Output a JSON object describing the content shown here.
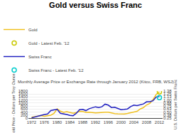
{
  "chart_data": {
    "type": "line",
    "title": "Gold versus Swiss Franc",
    "subtitle": "Monthly Average Price or Exchange Rate through January 2012 (Kitco, FRB, WSJ)",
    "ylabel": "Gold Price - Dollars per Troy Ounce",
    "y2label": "U.S. Dollars per Swiss Franc",
    "x": [
      1972,
      1973,
      1974,
      1975,
      1976,
      1977,
      1978,
      1979,
      1980,
      1981,
      1982,
      1983,
      1984,
      1985,
      1986,
      1987,
      1988,
      1989,
      1990,
      1991,
      1992,
      1993,
      1994,
      1995,
      1996,
      1997,
      1998,
      1999,
      2000,
      2001,
      2002,
      2003,
      2004,
      2005,
      2006,
      2007,
      2008,
      2009,
      2010,
      2011,
      2012
    ],
    "series": [
      {
        "name": "Gold",
        "type": "line",
        "color": "#f0c020",
        "values": [
          58,
          97,
          154,
          161,
          124,
          148,
          193,
          306,
          615,
          460,
          376,
          424,
          361,
          317,
          368,
          447,
          437,
          382,
          384,
          362,
          344,
          360,
          384,
          384,
          388,
          331,
          294,
          279,
          279,
          271,
          310,
          363,
          410,
          444,
          604,
          696,
          872,
          972,
          1225,
          1571,
          1740
        ]
      },
      {
        "name": "Gold - Latest Feb. '12",
        "type": "scatter",
        "marker": "open_circle",
        "color": "#c8c800",
        "values": [
          null,
          null,
          null,
          null,
          null,
          null,
          null,
          null,
          null,
          null,
          null,
          null,
          null,
          null,
          null,
          null,
          null,
          null,
          null,
          null,
          null,
          null,
          null,
          null,
          null,
          null,
          null,
          null,
          null,
          null,
          null,
          null,
          null,
          null,
          null,
          null,
          null,
          null,
          null,
          null,
          1740
        ]
      },
      {
        "name": "Swiss Franc",
        "type": "line",
        "color": "#2020c0",
        "axis": "y2",
        "values": [
          0.26,
          0.3,
          0.34,
          0.38,
          0.4,
          0.42,
          0.56,
          0.59,
          0.61,
          0.45,
          0.43,
          0.4,
          0.36,
          0.35,
          0.45,
          0.6,
          0.61,
          0.56,
          0.64,
          0.69,
          0.72,
          0.69,
          0.72,
          0.83,
          0.79,
          0.69,
          0.7,
          0.65,
          0.6,
          0.61,
          0.63,
          0.73,
          0.79,
          0.77,
          0.8,
          0.84,
          0.93,
          0.93,
          0.97,
          1.13,
          1.15
        ]
      },
      {
        "name": "Swiss Franc - Latest Feb. '12",
        "type": "scatter",
        "marker": "open_circle",
        "color": "#00cccc",
        "axis": "y2",
        "values": [
          null,
          null,
          null,
          null,
          null,
          null,
          null,
          null,
          null,
          null,
          null,
          null,
          null,
          null,
          null,
          null,
          null,
          null,
          null,
          null,
          null,
          null,
          null,
          null,
          null,
          null,
          null,
          null,
          null,
          null,
          null,
          null,
          null,
          null,
          null,
          null,
          null,
          null,
          null,
          null,
          1.1
        ]
      }
    ],
    "xlim": [
      1971,
      2013
    ],
    "xticks": [
      1972,
      1976,
      1980,
      1984,
      1988,
      1992,
      1996,
      2000,
      2004,
      2008,
      2012
    ],
    "ylim": [
      0,
      1800
    ],
    "yticks": [
      0,
      200,
      400,
      600,
      800,
      1000,
      1200,
      1400,
      1600,
      1800
    ],
    "y2lim": [
      0.25,
      1.38
    ],
    "y2ticks": [
      0.25,
      0.38,
      {
        "value": 0.5,
        "label": "0.50"
      },
      0.63,
      0.75,
      0.88,
      {
        "value": 1.0,
        "label": "1.00"
      },
      1.13,
      1.25,
      1.38
    ],
    "grid": "y",
    "legend": "top"
  }
}
